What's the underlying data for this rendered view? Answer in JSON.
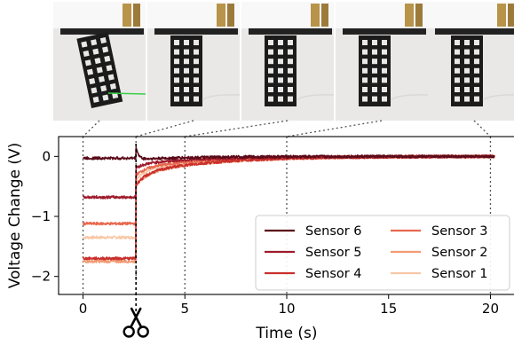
{
  "chart_data": {
    "type": "line",
    "title": "",
    "xlabel": "Time (s)",
    "ylabel": "Voltage Change (V)",
    "xlim": [
      -1.2,
      21.2
    ],
    "ylim": [
      -2.3,
      0.33
    ],
    "xticks": [
      0,
      5,
      10,
      15,
      20
    ],
    "yticks": [
      0,
      -1,
      -2
    ],
    "legend_position": "lower-right",
    "legend_columns": 2,
    "cut_time": 2.6,
    "snapshot_times": [
      0,
      2.6,
      5,
      10,
      20
    ],
    "snapshot_count": 5,
    "cut_icon": "scissors-icon",
    "series": [
      {
        "name": "Sensor 6",
        "color": "#5a0a18",
        "initial": -0.03,
        "peak": 0.22,
        "final": 0.0
      },
      {
        "name": "Sensor 5",
        "color": "#9e1b2c",
        "initial": -0.68,
        "peak": null,
        "final": 0.0
      },
      {
        "name": "Sensor 4",
        "color": "#c9302c",
        "initial": -1.7,
        "peak": null,
        "final": 0.0
      },
      {
        "name": "Sensor 3",
        "color": "#e8684f",
        "initial": -1.12,
        "peak": null,
        "final": 0.0
      },
      {
        "name": "Sensor 2",
        "color": "#f29a72",
        "initial": -1.75,
        "peak": null,
        "final": 0.0
      },
      {
        "name": "Sensor 1",
        "color": "#f8c8a8",
        "initial": -1.35,
        "peak": null,
        "final": 0.0
      }
    ],
    "colors": {
      "axis": "#000000",
      "guide": "#555555",
      "photo_bg": "#e9e8e6"
    }
  }
}
